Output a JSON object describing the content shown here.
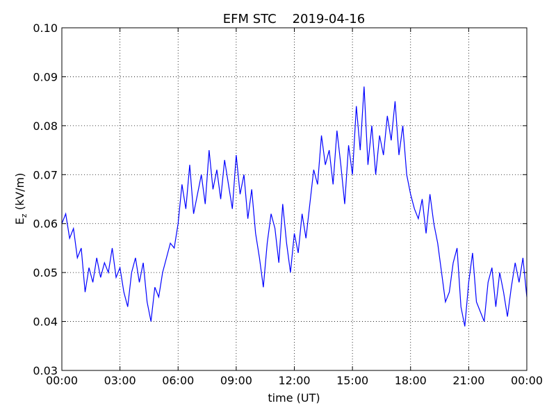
{
  "chart_data": {
    "type": "line",
    "title": "EFM STC    2019-04-16",
    "xlabel": "time (UT)",
    "ylabel": {
      "main": "E",
      "sub": "z",
      "unit": " (kV/m)"
    },
    "x": [
      0,
      0.2,
      0.4,
      0.6,
      0.8,
      1,
      1.2,
      1.4,
      1.6,
      1.8,
      2,
      2.2,
      2.4,
      2.6,
      2.8,
      3,
      3.2,
      3.4,
      3.6,
      3.8,
      4,
      4.2,
      4.4,
      4.6,
      4.8,
      5,
      5.2,
      5.4,
      5.6,
      5.8,
      6,
      6.2,
      6.4,
      6.6,
      6.8,
      7,
      7.2,
      7.4,
      7.6,
      7.8,
      8,
      8.2,
      8.4,
      8.6,
      8.8,
      9,
      9.2,
      9.4,
      9.6,
      9.8,
      10,
      10.2,
      10.4,
      10.6,
      10.8,
      11,
      11.2,
      11.4,
      11.6,
      11.8,
      12,
      12.2,
      12.4,
      12.6,
      12.8,
      13,
      13.2,
      13.4,
      13.6,
      13.8,
      14,
      14.2,
      14.4,
      14.6,
      14.8,
      15,
      15.2,
      15.4,
      15.6,
      15.8,
      16,
      16.2,
      16.4,
      16.6,
      16.8,
      17,
      17.2,
      17.4,
      17.6,
      17.8,
      18,
      18.2,
      18.4,
      18.6,
      18.8,
      19,
      19.2,
      19.4,
      19.6,
      19.8,
      20,
      20.2,
      20.4,
      20.6,
      20.8,
      21,
      21.2,
      21.4,
      21.6,
      21.8,
      22,
      22.2,
      22.4,
      22.6,
      22.8,
      23,
      23.2,
      23.4,
      23.6,
      23.8,
      24
    ],
    "series": [
      {
        "name": "Ez",
        "color": "#0000ff",
        "values": [
          0.06,
          0.062,
          0.057,
          0.059,
          0.053,
          0.055,
          0.046,
          0.051,
          0.048,
          0.053,
          0.049,
          0.052,
          0.05,
          0.055,
          0.049,
          0.051,
          0.046,
          0.043,
          0.05,
          0.053,
          0.048,
          0.052,
          0.044,
          0.04,
          0.047,
          0.045,
          0.05,
          0.053,
          0.056,
          0.055,
          0.06,
          0.068,
          0.063,
          0.072,
          0.062,
          0.066,
          0.07,
          0.064,
          0.075,
          0.067,
          0.071,
          0.065,
          0.073,
          0.068,
          0.063,
          0.074,
          0.066,
          0.07,
          0.061,
          0.067,
          0.058,
          0.053,
          0.047,
          0.056,
          0.062,
          0.059,
          0.052,
          0.064,
          0.056,
          0.05,
          0.058,
          0.054,
          0.062,
          0.057,
          0.064,
          0.071,
          0.068,
          0.078,
          0.072,
          0.075,
          0.068,
          0.079,
          0.072,
          0.064,
          0.076,
          0.07,
          0.084,
          0.075,
          0.088,
          0.072,
          0.08,
          0.07,
          0.078,
          0.074,
          0.082,
          0.077,
          0.085,
          0.074,
          0.08,
          0.07,
          0.066,
          0.063,
          0.061,
          0.065,
          0.058,
          0.066,
          0.06,
          0.056,
          0.05,
          0.044,
          0.046,
          0.052,
          0.055,
          0.043,
          0.039,
          0.048,
          0.054,
          0.044,
          0.042,
          0.04,
          0.048,
          0.051,
          0.043,
          0.05,
          0.046,
          0.041,
          0.047,
          0.052,
          0.048,
          0.053,
          0.045
        ]
      }
    ],
    "xlim": [
      0,
      24
    ],
    "xticks": [
      {
        "value": 0,
        "label": "00:00"
      },
      {
        "value": 3,
        "label": "03:00"
      },
      {
        "value": 6,
        "label": "06:00"
      },
      {
        "value": 9,
        "label": "09:00"
      },
      {
        "value": 12,
        "label": "12:00"
      },
      {
        "value": 15,
        "label": "15:00"
      },
      {
        "value": 18,
        "label": "18:00"
      },
      {
        "value": 21,
        "label": "21:00"
      },
      {
        "value": 24,
        "label": "00:00"
      }
    ],
    "ylim": [
      0.03,
      0.1
    ],
    "yticks": [
      0.03,
      0.04,
      0.05,
      0.06,
      0.07,
      0.08,
      0.09,
      {
        "value": 0.1,
        "label": "0.10"
      }
    ],
    "grid": true
  }
}
